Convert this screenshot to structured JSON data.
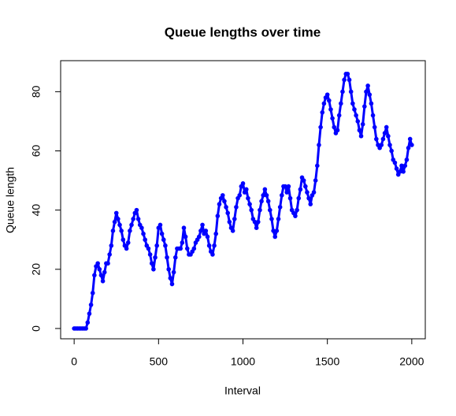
{
  "chart_data": {
    "type": "line",
    "title": "Queue lengths over time",
    "xlabel": "Interval",
    "ylabel": "Queue length",
    "color": "#0000ff",
    "markers": true,
    "x": [
      0,
      10,
      20,
      30,
      40,
      50,
      60,
      70,
      80,
      90,
      100,
      110,
      120,
      130,
      140,
      150,
      160,
      170,
      180,
      190,
      200,
      210,
      220,
      230,
      240,
      250,
      260,
      270,
      280,
      290,
      300,
      310,
      320,
      330,
      340,
      350,
      360,
      370,
      380,
      390,
      400,
      410,
      420,
      430,
      440,
      450,
      460,
      470,
      480,
      490,
      500,
      510,
      520,
      530,
      540,
      550,
      560,
      570,
      580,
      590,
      600,
      610,
      620,
      630,
      640,
      650,
      660,
      670,
      680,
      690,
      700,
      710,
      720,
      730,
      740,
      750,
      760,
      770,
      780,
      790,
      800,
      810,
      820,
      830,
      840,
      850,
      860,
      870,
      880,
      890,
      900,
      910,
      920,
      930,
      940,
      950,
      960,
      970,
      980,
      990,
      1000,
      1010,
      1020,
      1030,
      1040,
      1050,
      1060,
      1070,
      1080,
      1090,
      1100,
      1110,
      1120,
      1130,
      1140,
      1150,
      1160,
      1170,
      1180,
      1190,
      1200,
      1210,
      1220,
      1230,
      1240,
      1250,
      1260,
      1270,
      1280,
      1290,
      1300,
      1310,
      1320,
      1330,
      1340,
      1350,
      1360,
      1370,
      1380,
      1390,
      1400,
      1410,
      1420,
      1430,
      1440,
      1450,
      1460,
      1470,
      1480,
      1490,
      1500,
      1510,
      1520,
      1530,
      1540,
      1550,
      1560,
      1570,
      1580,
      1590,
      1600,
      1610,
      1620,
      1630,
      1640,
      1650,
      1660,
      1670,
      1680,
      1690,
      1700,
      1710,
      1720,
      1730,
      1740,
      1750,
      1760,
      1770,
      1780,
      1790,
      1800,
      1810,
      1820,
      1830,
      1840,
      1850,
      1860,
      1870,
      1880,
      1890,
      1900,
      1910,
      1920,
      1930,
      1940,
      1950,
      1960,
      1970,
      1980,
      1990,
      2000
    ],
    "values": [
      0,
      0,
      0,
      0,
      0,
      0,
      0,
      0,
      2,
      5,
      8,
      12,
      18,
      21,
      22,
      20,
      18,
      16,
      19,
      22,
      22,
      25,
      28,
      33,
      36,
      39,
      37,
      35,
      33,
      30,
      28,
      27,
      29,
      33,
      35,
      37,
      39,
      40,
      37,
      35,
      34,
      32,
      30,
      28,
      27,
      25,
      22,
      20,
      24,
      28,
      34,
      35,
      32,
      30,
      28,
      24,
      20,
      17,
      15,
      19,
      24,
      27,
      27,
      27,
      29,
      34,
      31,
      27,
      25,
      25,
      26,
      27,
      29,
      30,
      31,
      33,
      35,
      32,
      33,
      31,
      28,
      26,
      25,
      28,
      32,
      38,
      42,
      44,
      45,
      43,
      41,
      39,
      36,
      34,
      33,
      37,
      41,
      44,
      45,
      48,
      49,
      46,
      47,
      44,
      42,
      40,
      37,
      36,
      34,
      36,
      40,
      43,
      45,
      47,
      45,
      43,
      40,
      37,
      33,
      31,
      33,
      37,
      41,
      45,
      48,
      48,
      46,
      48,
      44,
      40,
      39,
      38,
      40,
      44,
      47,
      51,
      50,
      48,
      46,
      44,
      42,
      45,
      46,
      50,
      55,
      62,
      68,
      73,
      76,
      78,
      79,
      77,
      74,
      71,
      68,
      66,
      67,
      72,
      76,
      80,
      84,
      86,
      86,
      84,
      80,
      76,
      74,
      72,
      70,
      67,
      65,
      69,
      75,
      80,
      82,
      79,
      76,
      72,
      68,
      64,
      62,
      61,
      62,
      64,
      66,
      68,
      65,
      62,
      60,
      57,
      56,
      54,
      52,
      53,
      55,
      53,
      55,
      57,
      61,
      64,
      62
    ],
    "xlim": [
      -80,
      2080
    ],
    "xticks": [
      0,
      500,
      1000,
      1500,
      2000
    ],
    "ylim": [
      -3.48,
      90.48
    ],
    "yticks": [
      0,
      20,
      40,
      60,
      80
    ]
  }
}
